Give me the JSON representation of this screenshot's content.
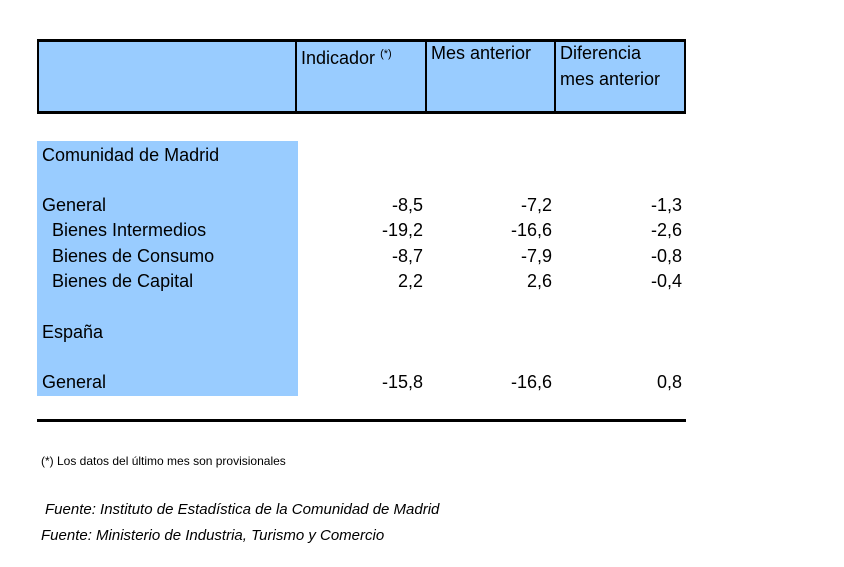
{
  "header": {
    "indicador": "Indicador",
    "indicador_mark": "(*)",
    "mes_anterior": "Mes anterior",
    "diferencia_l1": "Diferencia",
    "diferencia_l2": "mes anterior"
  },
  "madrid": {
    "title": "Comunidad de Madrid",
    "rows": [
      {
        "label": "General",
        "indicador": "-8,5",
        "mes_anterior": "-7,2",
        "diferencia": "-1,3"
      },
      {
        "label": "Bienes Intermedios",
        "indicador": "-19,2",
        "mes_anterior": "-16,6",
        "diferencia": "-2,6"
      },
      {
        "label": "Bienes de Consumo",
        "indicador": "-8,7",
        "mes_anterior": "-7,9",
        "diferencia": "-0,8"
      },
      {
        "label": "Bienes de Capital",
        "indicador": "2,2",
        "mes_anterior": "2,6",
        "diferencia": "-0,4"
      }
    ]
  },
  "espana": {
    "title": "España",
    "rows": [
      {
        "label": "General",
        "indicador": "-15,8",
        "mes_anterior": "-16,6",
        "diferencia": "0,8"
      }
    ]
  },
  "footnote": "(*) Los datos del último mes son provisionales",
  "sources": [
    "Fuente: Instituto de Estadística de la Comunidad de Madrid",
    "Fuente: Ministerio de Industria, Turismo y Comercio"
  ],
  "colors": {
    "band": "#99ccff",
    "rule": "#000000"
  }
}
